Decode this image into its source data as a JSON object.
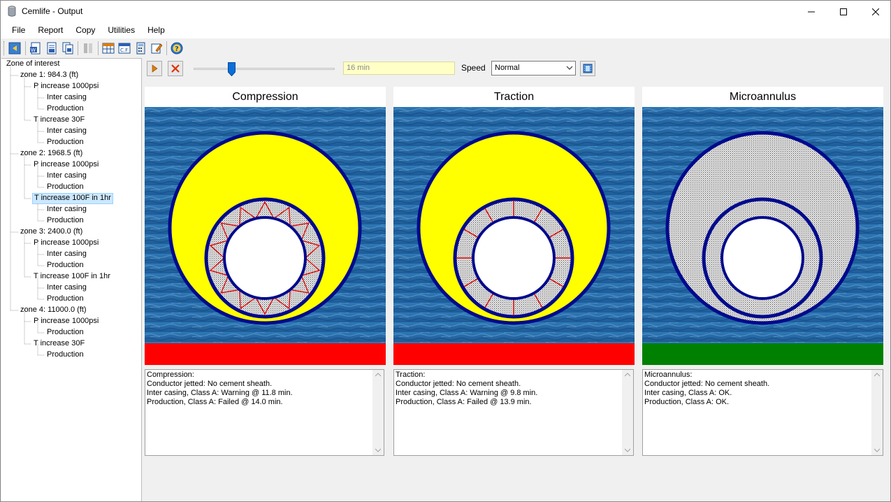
{
  "window": {
    "title": "Cemlife - Output"
  },
  "menu": [
    "File",
    "Report",
    "Copy",
    "Utilities",
    "Help"
  ],
  "toolbar": {
    "buttons": [
      "back-icon",
      "word-report-icon",
      "report-icon",
      "report-multi-icon",
      "disabled-icon",
      "table-icon",
      "cf-icon",
      "calculator-icon",
      "edit-icon",
      "help-icon"
    ]
  },
  "tree": {
    "root": "Zone of interest",
    "rows": [
      {
        "label": "zone 1: 984.3 (ft)",
        "level": 1
      },
      {
        "label": "P increase 1000psi",
        "level": 2
      },
      {
        "label": "Inter casing",
        "level": 3
      },
      {
        "label": "Production",
        "level": 3
      },
      {
        "label": "T increase 30F",
        "level": 2
      },
      {
        "label": "Inter casing",
        "level": 3
      },
      {
        "label": "Production",
        "level": 3
      },
      {
        "label": "zone 2: 1968.5 (ft)",
        "level": 1
      },
      {
        "label": "P increase 1000psi",
        "level": 2
      },
      {
        "label": "Inter casing",
        "level": 3
      },
      {
        "label": "Production",
        "level": 3
      },
      {
        "label": "T increase 100F in 1hr",
        "level": 2,
        "selected": true
      },
      {
        "label": "Inter casing",
        "level": 3
      },
      {
        "label": "Production",
        "level": 3
      },
      {
        "label": "zone 3: 2400.0 (ft)",
        "level": 1
      },
      {
        "label": "P increase 1000psi",
        "level": 2
      },
      {
        "label": "Inter casing",
        "level": 3
      },
      {
        "label": "Production",
        "level": 3
      },
      {
        "label": "T increase 100F in 1hr",
        "level": 2
      },
      {
        "label": "Inter casing",
        "level": 3
      },
      {
        "label": "Production",
        "level": 3
      },
      {
        "label": "zone 4: 11000.0 (ft)",
        "level": 1
      },
      {
        "label": "P increase 1000psi",
        "level": 2
      },
      {
        "label": "Production",
        "level": 3
      },
      {
        "label": "T increase 30F",
        "level": 2
      },
      {
        "label": "Production",
        "level": 3
      }
    ]
  },
  "controls": {
    "time_value": "16 min",
    "slider_position": 0.27,
    "speed_label": "Speed",
    "speed_value": "Normal"
  },
  "panels": [
    {
      "title": "Compression",
      "status_color": "#ff0000",
      "text": [
        "Compression:",
        "Conductor jetted: No cement sheath.",
        "Inter casing, Class A: Warning @ 11.8 min.",
        "Production, Class A: Failed @ 14.0 min."
      ]
    },
    {
      "title": "Traction",
      "status_color": "#ff0000",
      "text": [
        "Traction:",
        "Conductor jetted: No cement sheath.",
        "Inter casing, Class A: Warning @ 9.8 min.",
        "Production, Class A: Failed @ 13.9 min."
      ]
    },
    {
      "title": "Microannulus",
      "status_color": "#008000",
      "text": [
        "Microannulus:",
        "Conductor jetted: No cement sheath.",
        "Inter casing, Class A: OK.",
        "Production, Class A: OK."
      ]
    }
  ],
  "colors": {
    "steel": "#000a8c",
    "outer_cement": "#ffff00",
    "inner_cement": "#d8d8d8",
    "crack": "#e00000",
    "water": "#2f6ea8"
  }
}
